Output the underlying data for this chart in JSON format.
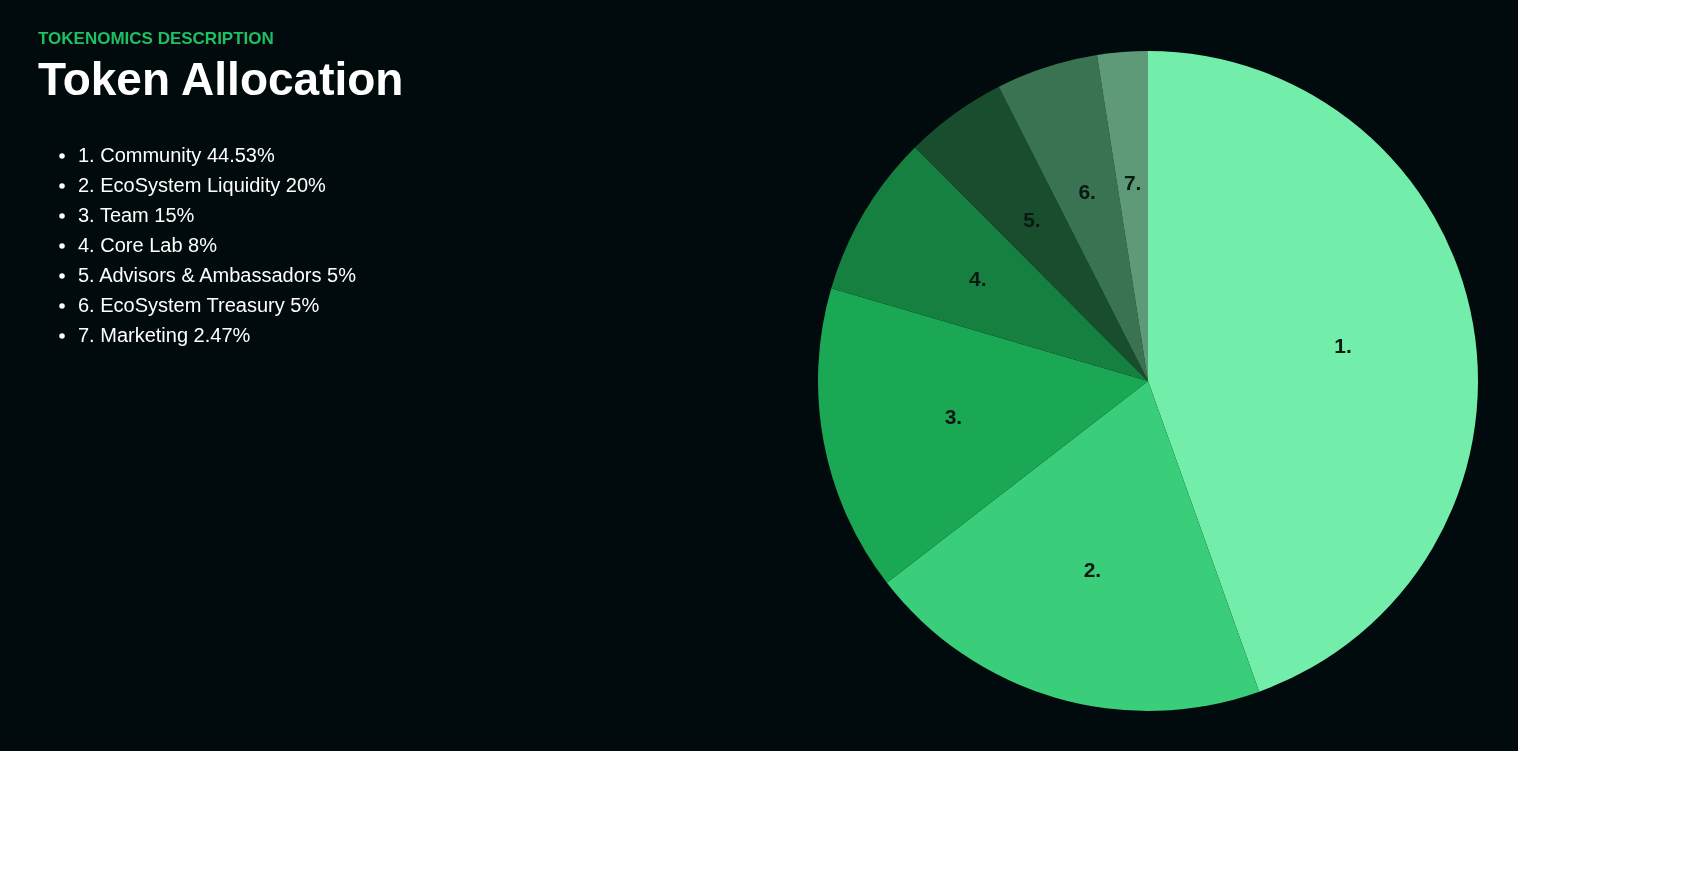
{
  "chart_data": {
    "type": "pie",
    "title": "Token Allocation",
    "subtitle": "TOKENOMICS DESCRIPTION",
    "categories": [
      "1.",
      "2.",
      "3.",
      "4.",
      "5.",
      "6.",
      "7."
    ],
    "values": [
      44.53,
      20,
      15,
      8,
      5,
      5,
      2.47
    ],
    "colors": [
      "#72edaa",
      "#3acd7a",
      "#1ba855",
      "#168040",
      "#184d2e",
      "#3a7352",
      "#5e9a78"
    ],
    "annotations": [
      "1. Community 44.53%",
      "2. EcoSystem Liquidity 20%",
      "3. Team 15%",
      "4. Core Lab 8%",
      "5. Advisors & Ambassadors 5%",
      "6. EcoSystem Treasury 5%",
      "7. Marketing 2.47%"
    ]
  }
}
